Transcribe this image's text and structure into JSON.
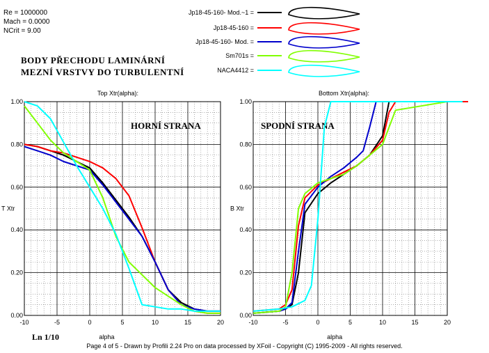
{
  "params": [
    "Re = 1000000",
    "Mach = 0.0000",
    "NCrit = 9.00"
  ],
  "heading": [
    "BODY PŘECHODU LAMINÁRNÍ",
    "MEZNÍ VRSTVY DO TURBULENTNÍ"
  ],
  "scale_label": "Ln 1/10",
  "footer": "Page 4 of 5   -   Drawn by Profili 2.24 Pro on data processed by  XFoil - Copyright (C) 1995-2009 - All rights reserved.",
  "legend": [
    {
      "name": "Jp18-45-160- Mod.~1 =",
      "color": "#000000"
    },
    {
      "name": "Jp18-45-160 =",
      "color": "#ff0000"
    },
    {
      "name": "Jp18-45-160- Mod. =",
      "color": "#0000cc"
    },
    {
      "name": "Sm701s =",
      "color": "#80ff00"
    },
    {
      "name": "NACA4412 =",
      "color": "#00ffff"
    }
  ],
  "chart_data": [
    {
      "type": "line",
      "title": "Top Xtr(alpha):",
      "annotation": "HORNÍ STRANA",
      "xlabel": "alpha",
      "ylabel": "T Xtr",
      "xlim": [
        -10,
        20
      ],
      "ylim": [
        0,
        1
      ],
      "xticks": [
        "-10",
        "-5",
        "0",
        "5",
        "10",
        "15",
        "20"
      ],
      "yticks": [
        "0.00",
        "0.20",
        "0.40",
        "0.60",
        "0.80",
        "1.00"
      ],
      "grid": true,
      "series": [
        {
          "name": "Jp18-45-160- Mod.~1",
          "color": "#000000",
          "x": [
            -10,
            -8,
            -6,
            -4,
            -2,
            0,
            2,
            4,
            6,
            8,
            10,
            12,
            14,
            16,
            18,
            20
          ],
          "y": [
            0.8,
            0.79,
            0.77,
            0.75,
            0.72,
            0.69,
            0.62,
            0.54,
            0.46,
            0.37,
            0.25,
            0.12,
            0.06,
            0.03,
            0.02,
            0.02
          ]
        },
        {
          "name": "Jp18-45-160",
          "color": "#ff0000",
          "x": [
            -10,
            -8,
            -6,
            -4,
            -2,
            0,
            2,
            4,
            6,
            8,
            10,
            12,
            14,
            16,
            18,
            20
          ],
          "y": [
            0.8,
            0.79,
            0.77,
            0.76,
            0.74,
            0.72,
            0.69,
            0.64,
            0.56,
            0.41,
            0.25,
            0.12,
            0.05,
            0.02,
            0.01,
            0.01
          ]
        },
        {
          "name": "Jp18-45-160- Mod.",
          "color": "#0000cc",
          "x": [
            -10,
            -8,
            -6,
            -4,
            -2,
            0,
            2,
            4,
            6,
            8,
            10,
            12,
            14,
            16,
            18,
            20
          ],
          "y": [
            0.79,
            0.77,
            0.75,
            0.72,
            0.7,
            0.68,
            0.61,
            0.53,
            0.45,
            0.37,
            0.25,
            0.12,
            0.05,
            0.03,
            0.02,
            0.02
          ]
        },
        {
          "name": "Sm701s",
          "color": "#80ff00",
          "x": [
            -10,
            -8,
            -6,
            -4,
            -2,
            0,
            2,
            4,
            6,
            8,
            10,
            12,
            14,
            16,
            18,
            20
          ],
          "y": [
            0.98,
            0.9,
            0.82,
            0.76,
            0.72,
            0.68,
            0.55,
            0.37,
            0.25,
            0.19,
            0.13,
            0.09,
            0.05,
            0.02,
            0.01,
            0.01
          ]
        },
        {
          "name": "NACA4412",
          "color": "#00ffff",
          "x": [
            -10,
            -8,
            -6,
            -4,
            -2,
            0,
            2,
            4,
            6,
            8,
            10,
            12,
            14,
            16,
            18,
            20
          ],
          "y": [
            1.0,
            0.98,
            0.92,
            0.81,
            0.7,
            0.6,
            0.5,
            0.38,
            0.22,
            0.05,
            0.04,
            0.03,
            0.03,
            0.02,
            0.02,
            0.02
          ]
        }
      ]
    },
    {
      "type": "line",
      "title": "Bottom Xtr(alpha):",
      "annotation": "SPODNÍ STRANA",
      "xlabel": "alpha",
      "ylabel": "B Xtr",
      "xlim": [
        -10,
        20
      ],
      "ylim": [
        0,
        1
      ],
      "xticks": [
        "-10",
        "-5",
        "0",
        "5",
        "10",
        "15",
        "20"
      ],
      "yticks": [
        "0.00",
        "0.20",
        "0.40",
        "0.60",
        "0.80",
        "1.00"
      ],
      "grid": true,
      "series": [
        {
          "name": "Jp18-45-160- Mod.~1",
          "color": "#000000",
          "x": [
            -10,
            -6,
            -5,
            -4,
            -3,
            -2,
            0,
            2,
            4,
            6,
            8,
            10,
            11,
            12,
            20
          ],
          "y": [
            0.01,
            0.02,
            0.03,
            0.05,
            0.2,
            0.48,
            0.57,
            0.62,
            0.66,
            0.7,
            0.75,
            0.84,
            1.0,
            1.0,
            1.0
          ]
        },
        {
          "name": "Jp18-45-160",
          "color": "#ff0000",
          "x": [
            -10,
            -6,
            -5,
            -4,
            -3,
            -2,
            0,
            2,
            4,
            6,
            8,
            10,
            11,
            12,
            20
          ],
          "y": [
            0.02,
            0.03,
            0.05,
            0.12,
            0.42,
            0.55,
            0.61,
            0.64,
            0.67,
            0.7,
            0.75,
            0.82,
            0.95,
            1.0,
            1.0
          ]
        },
        {
          "name": "Jp18-45-160- Mod.",
          "color": "#0000cc",
          "x": [
            -10,
            -6,
            -5,
            -4,
            -3,
            -2,
            0,
            2,
            4,
            6,
            7,
            8,
            9,
            10,
            20
          ],
          "y": [
            0.01,
            0.02,
            0.03,
            0.06,
            0.3,
            0.52,
            0.6,
            0.65,
            0.69,
            0.74,
            0.77,
            0.88,
            1.0,
            1.0,
            1.0
          ]
        },
        {
          "name": "Sm701s",
          "color": "#80ff00",
          "x": [
            -10,
            -6,
            -5,
            -4,
            -3,
            -2,
            0,
            2,
            4,
            6,
            8,
            10,
            12,
            20
          ],
          "y": [
            0.01,
            0.02,
            0.04,
            0.2,
            0.5,
            0.57,
            0.62,
            0.64,
            0.66,
            0.7,
            0.75,
            0.8,
            0.96,
            1.0
          ]
        },
        {
          "name": "NACA4412",
          "color": "#00ffff",
          "x": [
            -10,
            -6,
            -4,
            -2,
            -1,
            0,
            1,
            2,
            3,
            20
          ],
          "y": [
            0.02,
            0.03,
            0.04,
            0.07,
            0.14,
            0.45,
            0.88,
            1.0,
            1.0,
            1.0
          ]
        }
      ]
    }
  ]
}
